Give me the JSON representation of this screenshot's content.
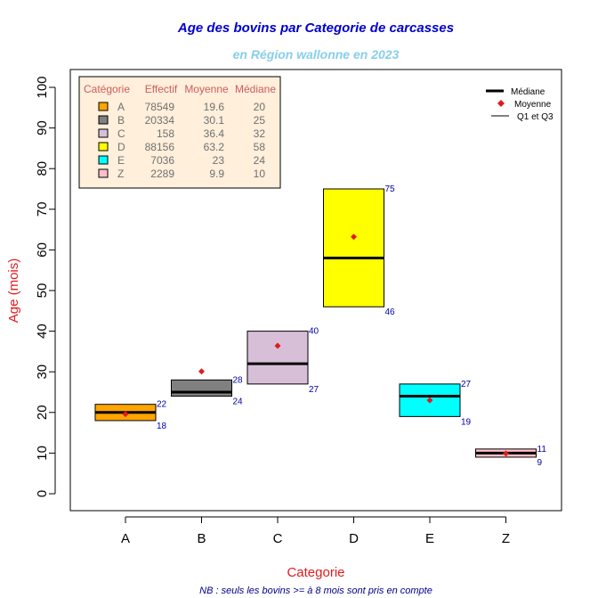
{
  "chart_data": {
    "type": "box",
    "title": "Age des bovins par Categorie de carcasses",
    "subtitle": "en Région wallonne en 2023",
    "xlabel": "Categorie",
    "ylabel": "Age (mois)",
    "note": "NB : seuls les bovins >= à 8 mois sont pris en compte",
    "ylim": [
      -4,
      104
    ],
    "yticks": [
      0,
      10,
      20,
      30,
      40,
      50,
      60,
      70,
      80,
      90,
      100
    ],
    "categories": [
      "A",
      "B",
      "C",
      "D",
      "E",
      "Z"
    ],
    "colors": [
      "#ffa500",
      "#808080",
      "#d8bfd8",
      "#ffff00",
      "#00ffff",
      "#ffc0cb"
    ],
    "q1": [
      18,
      24,
      27,
      46,
      19,
      9
    ],
    "q3": [
      22,
      28,
      40,
      75,
      27,
      11
    ],
    "median": [
      20,
      25,
      32,
      58,
      24,
      10
    ],
    "mean": [
      19.6,
      30.1,
      36.4,
      63.2,
      23,
      9.9
    ],
    "effectif": [
      "78549",
      "20334",
      "158",
      "88156",
      "7036",
      "2289"
    ],
    "moyenne_text": [
      "19.6",
      "30.1",
      "36.4",
      "63.2",
      "23",
      "9.9"
    ],
    "mediane_text": [
      "20",
      "25",
      "32",
      "58",
      "24",
      "10"
    ],
    "q1_text": [
      "18",
      "24",
      "27",
      "46",
      "19",
      "9"
    ],
    "q3_text": [
      "22",
      "28",
      "40",
      "75",
      "27",
      "11"
    ],
    "table_headers": [
      "Catégorie",
      "Effectif",
      "Moyenne",
      "Médiane"
    ],
    "legend": [
      "Médiane",
      "Moyenne",
      "Q1 et Q3"
    ],
    "legend_position": "top-right",
    "table_position": "top-left"
  }
}
